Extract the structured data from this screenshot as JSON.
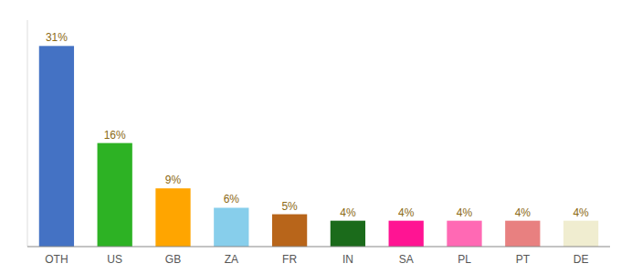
{
  "chart_data": {
    "type": "bar",
    "categories": [
      "OTH",
      "US",
      "GB",
      "ZA",
      "FR",
      "IN",
      "SA",
      "PL",
      "PT",
      "DE"
    ],
    "values": [
      31,
      16,
      9,
      6,
      5,
      4,
      4,
      4,
      4,
      4
    ],
    "value_labels": [
      "31%",
      "16%",
      "9%",
      "6%",
      "5%",
      "4%",
      "4%",
      "4%",
      "4%",
      "4%"
    ],
    "colors": [
      "#4472C4",
      "#2DB224",
      "#FFA500",
      "#87CEEB",
      "#B8651A",
      "#1B6B1B",
      "#FF1493",
      "#FF69B4",
      "#E88080",
      "#F0EDD0"
    ],
    "ylim": [
      0,
      35
    ],
    "data_labels": true,
    "tick_labels": "x"
  }
}
